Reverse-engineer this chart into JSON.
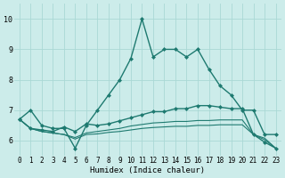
{
  "xlabel": "Humidex (Indice chaleur)",
  "bg_color": "#ccecea",
  "grid_color": "#aad8d5",
  "line_color": "#1e7a70",
  "xlim": [
    -0.5,
    23.5
  ],
  "ylim": [
    5.5,
    10.5
  ],
  "yticks": [
    6,
    7,
    8,
    9,
    10
  ],
  "xticks": [
    0,
    1,
    2,
    3,
    4,
    5,
    6,
    7,
    8,
    9,
    10,
    11,
    12,
    13,
    14,
    15,
    16,
    17,
    18,
    19,
    20,
    21,
    22,
    23
  ],
  "series": [
    [
      6.7,
      7.0,
      6.5,
      6.4,
      6.4,
      5.75,
      6.5,
      7.0,
      7.5,
      8.0,
      8.7,
      10.0,
      8.75,
      9.0,
      9.0,
      8.75,
      9.0,
      8.35,
      7.8,
      7.5,
      7.0,
      7.0,
      6.2,
      6.2
    ],
    [
      6.7,
      6.4,
      6.35,
      6.3,
      6.45,
      6.3,
      6.55,
      6.5,
      6.55,
      6.65,
      6.75,
      6.85,
      6.95,
      6.95,
      7.05,
      7.05,
      7.15,
      7.15,
      7.1,
      7.05,
      7.05,
      6.2,
      5.95,
      5.75
    ],
    [
      6.7,
      6.4,
      6.3,
      6.25,
      6.2,
      6.1,
      6.25,
      6.3,
      6.35,
      6.4,
      6.48,
      6.53,
      6.58,
      6.6,
      6.63,
      6.63,
      6.66,
      6.66,
      6.68,
      6.68,
      6.68,
      6.2,
      6.08,
      5.75
    ],
    [
      6.7,
      6.4,
      6.3,
      6.25,
      6.2,
      6.05,
      6.2,
      6.22,
      6.27,
      6.3,
      6.35,
      6.4,
      6.43,
      6.45,
      6.47,
      6.47,
      6.5,
      6.5,
      6.52,
      6.52,
      6.52,
      6.2,
      6.03,
      5.75
    ]
  ],
  "marker_indices": [
    0,
    1
  ],
  "xlabel_fontsize": 6.5,
  "tick_fontsize": 5.5
}
